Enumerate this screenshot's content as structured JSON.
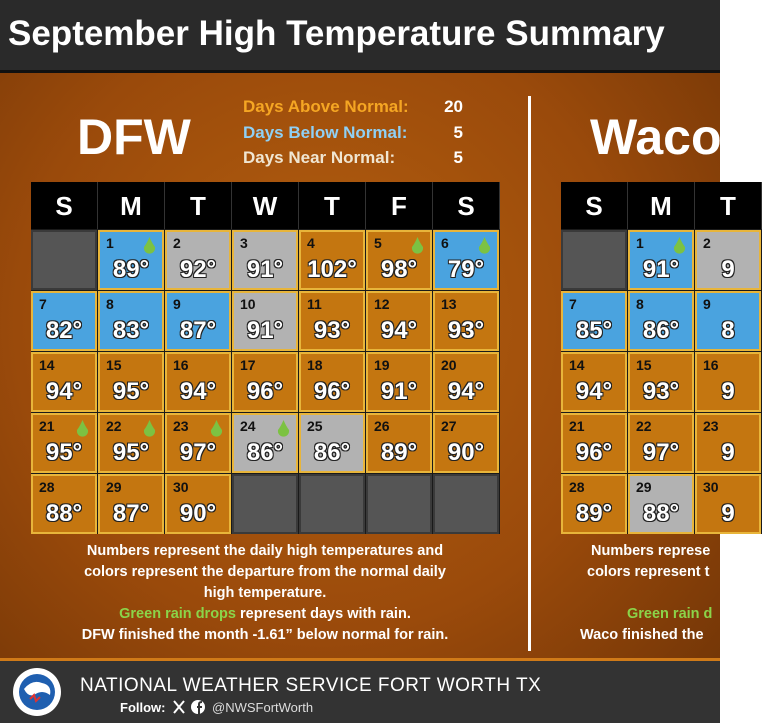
{
  "title": "September High Temperature Summary",
  "stats": [
    {
      "label": "Days Above Normal:",
      "value": 20,
      "status": "above"
    },
    {
      "label": "Days Below Normal:",
      "value": 5,
      "status": "below"
    },
    {
      "label": "Days Near Normal:",
      "value": 5,
      "status": "near"
    }
  ],
  "colors": {
    "above": "#c47610",
    "below": "#4aa3df",
    "near": "#b2b2b2",
    "empty": "#555555",
    "rain": "#7cc242"
  },
  "panels": [
    {
      "name": "DFW",
      "weekdays": [
        "S",
        "M",
        "T",
        "W",
        "T",
        "F",
        "S"
      ],
      "cells": [
        null,
        {
          "date": "1",
          "temp": "89°",
          "status": "below",
          "rain": true
        },
        {
          "date": "2",
          "temp": "92°",
          "status": "near",
          "rain": false
        },
        {
          "date": "3",
          "temp": "91°",
          "status": "near",
          "rain": false
        },
        {
          "date": "4",
          "temp": "102°",
          "status": "above",
          "rain": false
        },
        {
          "date": "5",
          "temp": "98°",
          "status": "above",
          "rain": true
        },
        {
          "date": "6",
          "temp": "79°",
          "status": "below",
          "rain": true
        },
        {
          "date": "7",
          "temp": "82°",
          "status": "below",
          "rain": false
        },
        {
          "date": "8",
          "temp": "83°",
          "status": "below",
          "rain": false
        },
        {
          "date": "9",
          "temp": "87°",
          "status": "below",
          "rain": false
        },
        {
          "date": "10",
          "temp": "91°",
          "status": "near",
          "rain": false
        },
        {
          "date": "11",
          "temp": "93°",
          "status": "above",
          "rain": false
        },
        {
          "date": "12",
          "temp": "94°",
          "status": "above",
          "rain": false
        },
        {
          "date": "13",
          "temp": "93°",
          "status": "above",
          "rain": false
        },
        {
          "date": "14",
          "temp": "94°",
          "status": "above",
          "rain": false
        },
        {
          "date": "15",
          "temp": "95°",
          "status": "above",
          "rain": false
        },
        {
          "date": "16",
          "temp": "94°",
          "status": "above",
          "rain": false
        },
        {
          "date": "17",
          "temp": "96°",
          "status": "above",
          "rain": false
        },
        {
          "date": "18",
          "temp": "96°",
          "status": "above",
          "rain": false
        },
        {
          "date": "19",
          "temp": "91°",
          "status": "above",
          "rain": false
        },
        {
          "date": "20",
          "temp": "94°",
          "status": "above",
          "rain": false
        },
        {
          "date": "21",
          "temp": "95°",
          "status": "above",
          "rain": true
        },
        {
          "date": "22",
          "temp": "95°",
          "status": "above",
          "rain": true
        },
        {
          "date": "23",
          "temp": "97°",
          "status": "above",
          "rain": true
        },
        {
          "date": "24",
          "temp": "86°",
          "status": "near",
          "rain": true
        },
        {
          "date": "25",
          "temp": "86°",
          "status": "near",
          "rain": false
        },
        {
          "date": "26",
          "temp": "89°",
          "status": "above",
          "rain": false
        },
        {
          "date": "27",
          "temp": "90°",
          "status": "above",
          "rain": false
        },
        {
          "date": "28",
          "temp": "88°",
          "status": "above",
          "rain": false
        },
        {
          "date": "29",
          "temp": "87°",
          "status": "above",
          "rain": false
        },
        {
          "date": "30",
          "temp": "90°",
          "status": "above",
          "rain": false
        },
        null,
        null,
        null,
        null
      ],
      "notes": {
        "line1": "Numbers represent the daily high temperatures and",
        "line2": "colors represent the departure from the normal daily",
        "line3": "high temperature.",
        "highlight": "Green rain drops",
        "line4": "represent days with rain.",
        "line5": "DFW finished the month -1.61” below normal for rain."
      }
    },
    {
      "name": "Waco",
      "weekdays": [
        "S",
        "M",
        "T"
      ],
      "cells": [
        null,
        {
          "date": "1",
          "temp": "91°",
          "status": "below",
          "rain": true
        },
        {
          "date": "2",
          "temp": "9",
          "status": "near",
          "rain": false
        },
        {
          "date": "7",
          "temp": "85°",
          "status": "below",
          "rain": false
        },
        {
          "date": "8",
          "temp": "86°",
          "status": "below",
          "rain": false
        },
        {
          "date": "9",
          "temp": "8",
          "status": "below",
          "rain": false
        },
        {
          "date": "14",
          "temp": "94°",
          "status": "above",
          "rain": false
        },
        {
          "date": "15",
          "temp": "93°",
          "status": "above",
          "rain": false
        },
        {
          "date": "16",
          "temp": "9",
          "status": "above",
          "rain": false
        },
        {
          "date": "21",
          "temp": "96°",
          "status": "above",
          "rain": false
        },
        {
          "date": "22",
          "temp": "97°",
          "status": "above",
          "rain": false
        },
        {
          "date": "23",
          "temp": "9",
          "status": "above",
          "rain": false
        },
        {
          "date": "28",
          "temp": "89°",
          "status": "above",
          "rain": false
        },
        {
          "date": "29",
          "temp": "88°",
          "status": "near",
          "rain": false
        },
        {
          "date": "30",
          "temp": "9",
          "status": "above",
          "rain": false
        }
      ],
      "notes": {
        "line1": "Numbers represe",
        "line2": "colors represent t",
        "highlight": "Green rain d",
        "line5": "Waco finished the"
      }
    }
  ],
  "footer": {
    "org": "NATIONAL WEATHER SERVICE FORT WORTH TX",
    "follow": "Follow:",
    "handle": "@NWSFortWorth"
  }
}
